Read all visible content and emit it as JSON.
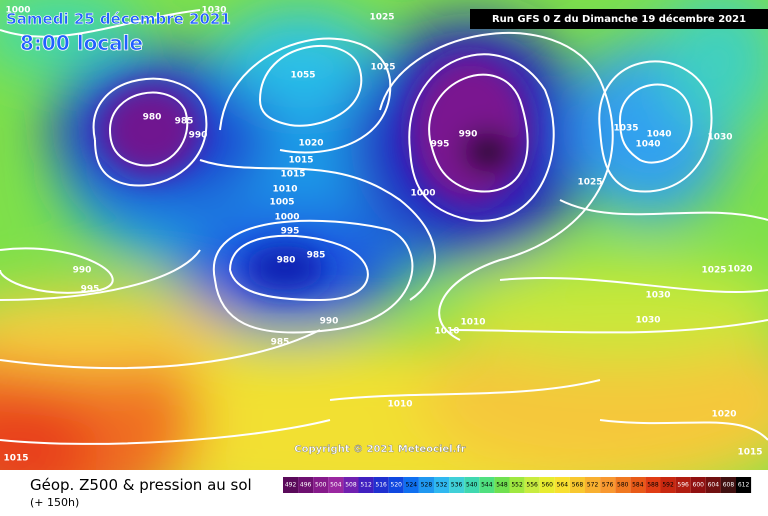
{
  "header": {
    "date": "Samedi 25 décembre 2021",
    "time": "8:00 locale",
    "run": "Run GFS 0 Z du Dimanche 19 décembre 2021"
  },
  "map": {
    "copyright": "Copyright © 2021 Meteociel.fr",
    "isobar_labels": [
      "1000",
      "1030",
      "1025",
      "1025",
      "1055",
      "980",
      "985",
      "990",
      "990",
      "995",
      "1020",
      "1015",
      "1015",
      "1010",
      "1005",
      "1000",
      "995",
      "1000",
      "1035",
      "1040",
      "1040",
      "1030",
      "1025",
      "980",
      "985",
      "990",
      "995",
      "990",
      "985",
      "1010",
      "1010",
      "1025",
      "1020",
      "1030",
      "1030",
      "1010",
      "1020",
      "1015",
      "1015"
    ]
  },
  "footer": {
    "title": "Géop. Z500 & pression au sol",
    "lead": "(+ 150h)",
    "scale": [
      492,
      496,
      500,
      504,
      508,
      512,
      516,
      520,
      524,
      528,
      532,
      536,
      540,
      544,
      548,
      552,
      556,
      560,
      564,
      568,
      572,
      576,
      580,
      584,
      588,
      592,
      596,
      600,
      604,
      608,
      612
    ]
  }
}
